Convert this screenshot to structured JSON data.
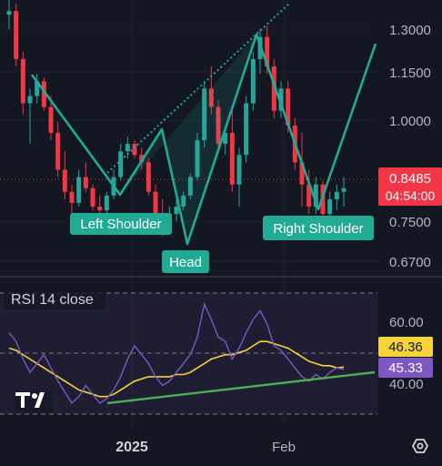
{
  "price_axis": {
    "ticks": [
      "1.3000",
      "1.1500",
      "1.0000",
      "0.7500",
      "0.6700"
    ],
    "last_price": "0.8485",
    "countdown": "04:54:00"
  },
  "labels": {
    "left_shoulder": "Left Shoulder",
    "head": "Head",
    "right_shoulder": "Right Shoulder"
  },
  "rsi": {
    "title": "RSI 14 close",
    "ticks": [
      "60.00",
      "40.00"
    ],
    "ma_value": "46.36",
    "rsi_value": "45.33"
  },
  "time_axis": {
    "labels": [
      "2025",
      "Feb"
    ]
  },
  "branding": {
    "logo": "TV"
  },
  "icons": {
    "settings": "gear-icon"
  },
  "colors": {
    "background": "#131722",
    "up_candle": "#26a69a",
    "down_candle": "#f23645",
    "pattern_line": "#22ab94",
    "rsi_line": "#7e57c2",
    "rsi_ma": "#f5d33a",
    "trendline": "#4caf50"
  },
  "chart_data": {
    "type": "candlestick",
    "pattern": "head-and-shoulders",
    "ylim": [
      0.62,
      1.36
    ],
    "candles_ohlc": [
      [
        1.32,
        1.36,
        1.28,
        1.33
      ],
      [
        1.33,
        1.35,
        1.18,
        1.2
      ],
      [
        1.2,
        1.22,
        1.05,
        1.08
      ],
      [
        1.08,
        1.12,
        0.97,
        1.1
      ],
      [
        1.1,
        1.16,
        1.08,
        1.14
      ],
      [
        1.14,
        1.15,
        1.06,
        1.07
      ],
      [
        1.07,
        1.1,
        0.98,
        1.0
      ],
      [
        1.0,
        1.03,
        0.88,
        0.9
      ],
      [
        0.9,
        0.95,
        0.82,
        0.84
      ],
      [
        0.84,
        0.86,
        0.78,
        0.81
      ],
      [
        0.81,
        0.9,
        0.8,
        0.88
      ],
      [
        0.88,
        0.92,
        0.84,
        0.85
      ],
      [
        0.85,
        0.86,
        0.79,
        0.8
      ],
      [
        0.8,
        0.83,
        0.77,
        0.79
      ],
      [
        0.79,
        0.84,
        0.78,
        0.83
      ],
      [
        0.83,
        0.9,
        0.82,
        0.88
      ],
      [
        0.88,
        0.97,
        0.87,
        0.95
      ],
      [
        0.95,
        0.99,
        0.93,
        0.97
      ],
      [
        0.97,
        0.98,
        0.93,
        0.94
      ],
      [
        0.94,
        0.96,
        0.9,
        0.92
      ],
      [
        0.92,
        0.93,
        0.83,
        0.84
      ],
      [
        0.84,
        0.86,
        0.77,
        0.78
      ],
      [
        0.78,
        0.82,
        0.72,
        0.74
      ],
      [
        0.74,
        0.8,
        0.73,
        0.78
      ],
      [
        0.78,
        0.82,
        0.76,
        0.8
      ],
      [
        0.8,
        0.84,
        0.79,
        0.83
      ],
      [
        0.83,
        0.89,
        0.82,
        0.88
      ],
      [
        0.88,
        1.0,
        0.87,
        0.98
      ],
      [
        0.98,
        1.14,
        0.96,
        1.12
      ],
      [
        1.12,
        1.18,
        1.05,
        1.07
      ],
      [
        1.07,
        1.09,
        0.95,
        0.97
      ],
      [
        0.97,
        1.02,
        0.94,
        1.0
      ],
      [
        1.0,
        1.06,
        0.84,
        0.86
      ],
      [
        0.86,
        0.96,
        0.8,
        0.94
      ],
      [
        0.94,
        1.1,
        0.92,
        1.08
      ],
      [
        1.08,
        1.22,
        1.06,
        1.2
      ],
      [
        1.2,
        1.28,
        1.16,
        1.26
      ],
      [
        1.26,
        1.29,
        1.16,
        1.18
      ],
      [
        1.18,
        1.2,
        1.04,
        1.06
      ],
      [
        1.06,
        1.14,
        1.04,
        1.12
      ],
      [
        1.12,
        1.14,
        1.0,
        1.02
      ],
      [
        1.02,
        1.04,
        0.9,
        0.92
      ],
      [
        0.92,
        1.0,
        0.8,
        0.86
      ],
      [
        0.86,
        0.9,
        0.78,
        0.8
      ],
      [
        0.8,
        0.88,
        0.78,
        0.86
      ],
      [
        0.86,
        0.87,
        0.76,
        0.78
      ],
      [
        0.78,
        0.84,
        0.77,
        0.82
      ],
      [
        0.82,
        0.86,
        0.79,
        0.84
      ],
      [
        0.84,
        0.88,
        0.8,
        0.85
      ]
    ],
    "rsi": [
      62,
      58,
      50,
      44,
      48,
      52,
      46,
      40,
      35,
      30,
      33,
      38,
      34,
      30,
      32,
      36,
      42,
      50,
      56,
      52,
      48,
      42,
      38,
      40,
      44,
      48,
      52,
      60,
      75,
      68,
      60,
      58,
      50,
      55,
      62,
      68,
      72,
      66,
      56,
      54,
      50,
      46,
      42,
      40,
      43,
      41,
      44,
      46,
      45.33
    ],
    "rsi_ma": [
      55,
      54,
      52,
      50,
      48,
      46,
      44,
      42,
      40,
      38,
      36,
      35,
      34,
      33,
      33,
      34,
      36,
      38,
      40,
      41,
      42,
      42,
      42,
      42,
      43,
      43,
      44,
      46,
      48,
      50,
      51,
      52,
      52,
      53,
      54,
      56,
      58,
      58,
      57,
      56,
      55,
      53,
      51,
      49,
      48,
      47,
      47,
      46,
      46.36
    ],
    "rsi_ylim": [
      25,
      80
    ]
  }
}
